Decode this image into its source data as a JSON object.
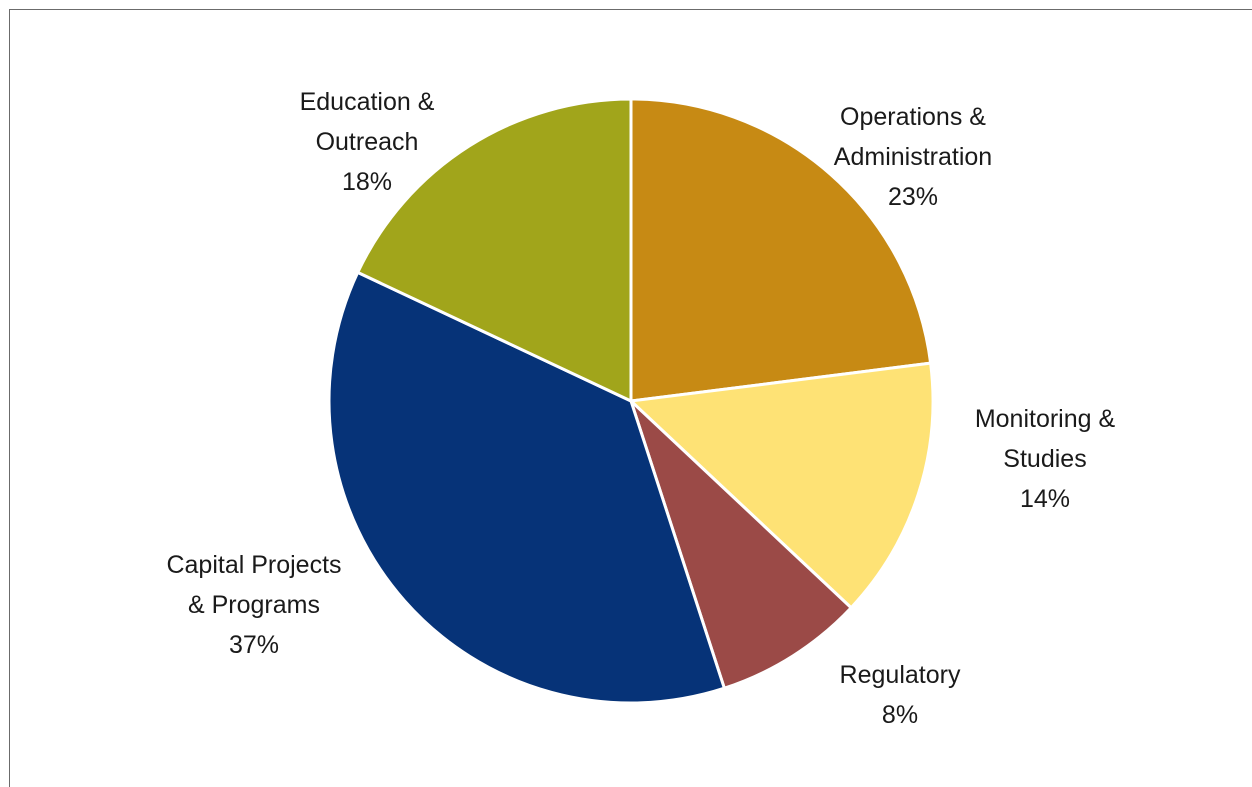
{
  "chart_data": {
    "type": "pie",
    "title": "",
    "slices": [
      {
        "label_lines": [
          "Operations &",
          "Administration"
        ],
        "value": 23,
        "value_label": "23%",
        "color": "#C78A14"
      },
      {
        "label_lines": [
          "Monitoring &",
          "Studies"
        ],
        "value": 14,
        "value_label": "14%",
        "color": "#FEE275"
      },
      {
        "label_lines": [
          "Regulatory"
        ],
        "value": 8,
        "value_label": "8%",
        "color": "#9B4A47"
      },
      {
        "label_lines": [
          "Capital Projects",
          "& Programs"
        ],
        "value": 37,
        "value_label": "37%",
        "color": "#063378"
      },
      {
        "label_lines": [
          "Education &",
          "Outreach"
        ],
        "value": 18,
        "value_label": "18%",
        "color": "#A1A51B"
      }
    ],
    "start_angle_deg": 0,
    "direction": "clockwise",
    "slice_border_color": "#ffffff",
    "legend": "none"
  }
}
